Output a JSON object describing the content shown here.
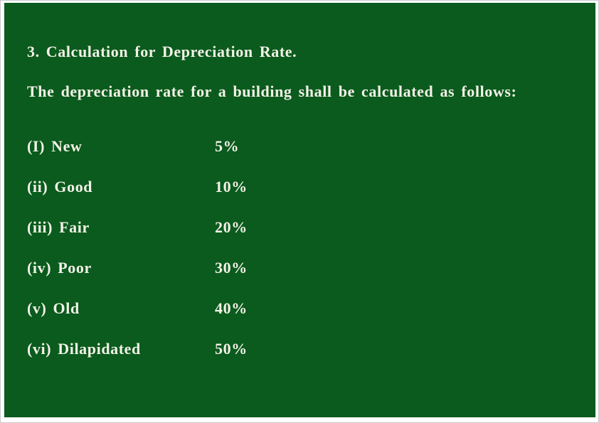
{
  "page": {
    "background_color": "#ffffff",
    "panel_color": "#0a5b1d",
    "text_color": "#f3f1e7"
  },
  "heading": "3. Calculation for Depreciation Rate.",
  "intro": "The depreciation rate for a building shall be calculated as follows:",
  "rates": [
    {
      "label": "(I) New",
      "value": "5%"
    },
    {
      "label": "(ii) Good",
      "value": "10%"
    },
    {
      "label": "(iii) Fair",
      "value": "20%"
    },
    {
      "label": "(iv) Poor",
      "value": "30%"
    },
    {
      "label": "(v) Old",
      "value": "40%"
    },
    {
      "label": "(vi) Dilapidated",
      "value": "50%"
    }
  ]
}
